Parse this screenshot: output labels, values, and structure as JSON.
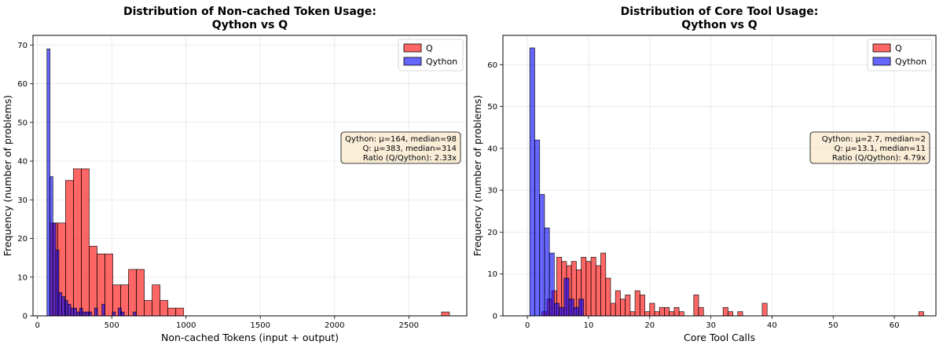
{
  "colors": {
    "q": "#ff0000",
    "qython": "#0000ff",
    "bar_edge": "#000000",
    "stats_bg": "#f5deb3"
  },
  "chart_data": [
    {
      "type": "histogram",
      "title": [
        "Distribution of Non-cached Token Usage:",
        "Qython vs Q"
      ],
      "xlabel": "Non-cached Tokens (input + output)",
      "ylabel": "Frequency (number of problems)",
      "xlim": [
        -30,
        2890
      ],
      "ylim": [
        0,
        72.5
      ],
      "xticks": [
        0,
        500,
        1000,
        1500,
        2000,
        2500
      ],
      "yticks": [
        0,
        10,
        20,
        30,
        40,
        50,
        60,
        70
      ],
      "grid": true,
      "legend_position": "top-right",
      "series": [
        {
          "name": "Q",
          "color_key": "q",
          "bins": [
            [
              83,
              136,
              24
            ],
            [
              136,
              189,
              24
            ],
            [
              189,
              242,
              35
            ],
            [
              242,
              295,
              38
            ],
            [
              295,
              348,
              38
            ],
            [
              348,
              401,
              18
            ],
            [
              401,
              454,
              16
            ],
            [
              454,
              507,
              16
            ],
            [
              507,
              560,
              8
            ],
            [
              560,
              613,
              8
            ],
            [
              613,
              666,
              12
            ],
            [
              666,
              719,
              12
            ],
            [
              719,
              772,
              4
            ],
            [
              772,
              825,
              8
            ],
            [
              825,
              878,
              4
            ],
            [
              878,
              931,
              2
            ],
            [
              931,
              984,
              2
            ],
            [
              2720,
              2773,
              1
            ]
          ]
        },
        {
          "name": "Qython",
          "color_key": "qython",
          "bins": [
            [
              64,
              84,
              69
            ],
            [
              84,
              104,
              36
            ],
            [
              104,
              124,
              24
            ],
            [
              124,
              144,
              17
            ],
            [
              144,
              164,
              6
            ],
            [
              164,
              184,
              5
            ],
            [
              184,
              204,
              4
            ],
            [
              204,
              224,
              3
            ],
            [
              224,
              244,
              2
            ],
            [
              244,
              264,
              2
            ],
            [
              264,
              284,
              1
            ],
            [
              284,
              304,
              2
            ],
            [
              304,
              324,
              1
            ],
            [
              324,
              344,
              1
            ],
            [
              344,
              364,
              1
            ],
            [
              384,
              404,
              2
            ],
            [
              434,
              454,
              3
            ],
            [
              504,
              524,
              1
            ],
            [
              544,
              564,
              2
            ],
            [
              564,
              584,
              1
            ],
            [
              644,
              664,
              1
            ]
          ]
        }
      ],
      "stats": [
        "Qython: μ=164, median=98",
        "Q: μ=383, median=314",
        "Ratio (Q/Qython): 2.33x"
      ]
    },
    {
      "type": "histogram",
      "title": [
        "Distribution of Core Tool Usage:",
        "Qython vs Q"
      ],
      "xlabel": "Core Tool Calls",
      "ylabel": "Frequency (number of problems)",
      "xlim": [
        -4,
        66.8
      ],
      "ylim": [
        0,
        67
      ],
      "xticks": [
        0,
        10,
        20,
        30,
        40,
        50,
        60
      ],
      "yticks": [
        0,
        10,
        20,
        30,
        40,
        50,
        60
      ],
      "grid": true,
      "legend_position": "top-right",
      "series": [
        {
          "name": "Q",
          "color_key": "q",
          "bins": [
            [
              2.4,
              3.2,
              1
            ],
            [
              3.2,
              4.0,
              4
            ],
            [
              4.0,
              4.8,
              6
            ],
            [
              4.8,
              5.6,
              14
            ],
            [
              5.6,
              6.4,
              13
            ],
            [
              6.4,
              7.2,
              12
            ],
            [
              7.2,
              8.0,
              13
            ],
            [
              8.0,
              8.8,
              11
            ],
            [
              8.8,
              9.6,
              14
            ],
            [
              9.6,
              10.4,
              13
            ],
            [
              10.4,
              11.2,
              14
            ],
            [
              11.2,
              12.0,
              12
            ],
            [
              12.0,
              12.8,
              15
            ],
            [
              12.8,
              13.6,
              9
            ],
            [
              13.6,
              14.4,
              3
            ],
            [
              14.4,
              15.2,
              6
            ],
            [
              15.2,
              16.0,
              4
            ],
            [
              16.0,
              16.8,
              5
            ],
            [
              16.8,
              17.6,
              1
            ],
            [
              17.6,
              18.4,
              6
            ],
            [
              18.4,
              19.2,
              5
            ],
            [
              19.2,
              20.0,
              1
            ],
            [
              20.0,
              20.8,
              3
            ],
            [
              20.8,
              21.6,
              1
            ],
            [
              21.6,
              22.4,
              2
            ],
            [
              22.4,
              23.2,
              2
            ],
            [
              23.2,
              24.0,
              1
            ],
            [
              24.0,
              24.8,
              2
            ],
            [
              24.8,
              25.6,
              1
            ],
            [
              27.2,
              28.0,
              5
            ],
            [
              28.0,
              28.8,
              2
            ],
            [
              32.0,
              32.8,
              2
            ],
            [
              32.8,
              33.6,
              1
            ],
            [
              34.4,
              35.2,
              1
            ],
            [
              38.4,
              39.2,
              3
            ],
            [
              64.0,
              64.8,
              1
            ]
          ]
        },
        {
          "name": "Qython",
          "color_key": "qython",
          "bins": [
            [
              0.4,
              1.2,
              64
            ],
            [
              1.2,
              2.0,
              42
            ],
            [
              2.0,
              2.8,
              29
            ],
            [
              2.8,
              3.6,
              21
            ],
            [
              3.6,
              4.4,
              15
            ],
            [
              4.4,
              5.2,
              3
            ],
            [
              5.2,
              6.0,
              2
            ],
            [
              6.0,
              6.8,
              9
            ],
            [
              6.8,
              7.6,
              4
            ],
            [
              7.6,
              8.4,
              2
            ],
            [
              8.4,
              9.2,
              4
            ]
          ]
        }
      ],
      "stats": [
        "Qython: μ=2.7, median=2",
        "Q: μ=13.1, median=11",
        "Ratio (Q/Qython): 4.79x"
      ]
    }
  ]
}
